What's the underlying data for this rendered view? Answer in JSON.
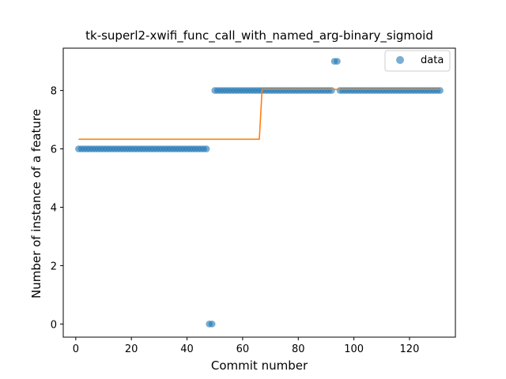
{
  "chart_data": {
    "type": "scatter",
    "title": "tk-superl2-xwifi_func_call_with_named_arg-binary_sigmoid",
    "xlabel": "Commit number",
    "ylabel": "Number of instance of a feature",
    "xlim": [
      -4.5,
      136.5
    ],
    "ylim": [
      -0.45,
      9.45
    ],
    "xticks": [
      0,
      20,
      40,
      60,
      80,
      100,
      120
    ],
    "yticks": [
      0,
      2,
      4,
      6,
      8
    ],
    "grid": false,
    "legend": {
      "placement": "top-right",
      "entries": [
        "data"
      ]
    },
    "colors": {
      "data": "#1f77b4",
      "fit": "#ff7f0e"
    },
    "series": [
      {
        "name": "data",
        "kind": "scatter",
        "segments": [
          {
            "x_from": 1,
            "x_to": 47,
            "y": 6
          },
          {
            "x_from": 48,
            "x_to": 49,
            "y": 0
          },
          {
            "x_from": 50,
            "x_to": 92,
            "y": 8
          },
          {
            "x_from": 93,
            "x_to": 94,
            "y": 9
          },
          {
            "x_from": 95,
            "x_to": 131,
            "y": 8
          }
        ]
      },
      {
        "kind": "line",
        "x": [
          1,
          66,
          67,
          131
        ],
        "y": [
          6.33,
          6.33,
          8.04,
          8.04
        ]
      }
    ]
  }
}
